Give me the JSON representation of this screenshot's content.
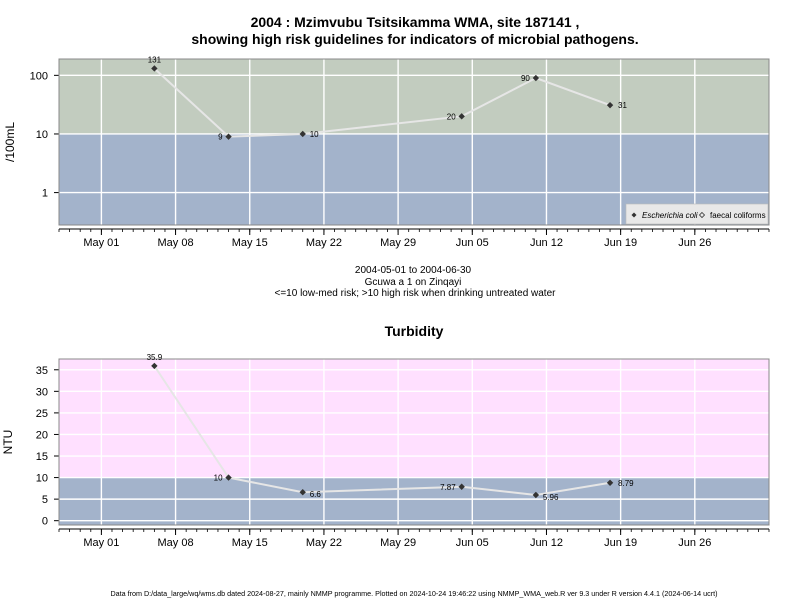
{
  "colors": {
    "high_risk_band": "#c2ccbf",
    "low_risk_band": "#a3b3cb",
    "turbidity_high_band": "#ffe0ff",
    "grid": "#ffffff",
    "line": "#e6e6e6",
    "marker": "#333333"
  },
  "microbial": {
    "title_line1": "2004 : Mzimvubu Tsitsikamma WMA, site 187141 ,",
    "title_line2": "showing high risk guidelines for indicators of microbial pathogens.",
    "subtitle_range": "2004-05-01 to 2004-06-30",
    "subtitle_site": "Gcuwa a 1 on Zinqayi",
    "subtitle_note": "<=10 low-med risk; >10 high risk when drinking untreated water",
    "legend": {
      "position": "bottom-right",
      "ecoli_label": "Escherichia coli",
      "faecal_label": "faecal coliforms"
    }
  },
  "footer": {
    "text": "Data from D:/data_large/wq/wms.db dated 2024-08-27, mainly NMMP programme. Plotted on 2024-10-24 19:46:22 using NMMP_WMA_web.R ver 9.3 under R version 4.4.1 (2024-06-14 ucrt)"
  },
  "chart_data": [
    {
      "type": "line",
      "ylabel": "/100mL",
      "yscale": "log",
      "ylim": [
        0.28,
        190
      ],
      "yticks": [
        "1",
        "10",
        "100"
      ],
      "xlim": [
        "2004-04-27",
        "2004-07-03"
      ],
      "xticks": [
        "May 01",
        "May 08",
        "May 15",
        "May 22",
        "May 29",
        "Jun 05",
        "Jun 12",
        "Jun 19",
        "Jun 26"
      ],
      "threshold": 10,
      "grid": true,
      "series": [
        {
          "name": "Escherichia coli",
          "x": [
            "2004-05-06",
            "2004-05-13",
            "2004-05-20",
            "2004-06-04",
            "2004-06-11",
            "2004-06-18"
          ],
          "y": [
            131,
            9,
            10,
            20,
            90,
            31
          ],
          "labels": [
            "131",
            "9",
            "10",
            "20",
            "90",
            "31"
          ]
        }
      ]
    },
    {
      "type": "line",
      "title": "Turbidity",
      "ylabel": "NTU",
      "ylim": [
        -1,
        37.5
      ],
      "yticks": [
        "0",
        "5",
        "10",
        "15",
        "20",
        "25",
        "30",
        "35"
      ],
      "xlim": [
        "2004-04-27",
        "2004-07-03"
      ],
      "xticks": [
        "May 01",
        "May 08",
        "May 15",
        "May 22",
        "May 29",
        "Jun 05",
        "Jun 12",
        "Jun 19",
        "Jun 26"
      ],
      "threshold": 10,
      "grid": true,
      "series": [
        {
          "x": [
            "2004-05-06",
            "2004-05-13",
            "2004-05-20",
            "2004-06-04",
            "2004-06-11",
            "2004-06-18"
          ],
          "y": [
            35.9,
            10,
            6.6,
            7.87,
            5.96,
            8.79
          ],
          "labels": [
            "35.9",
            "10",
            "6.6",
            "7.87",
            "5.96",
            "8.79"
          ]
        }
      ]
    }
  ]
}
